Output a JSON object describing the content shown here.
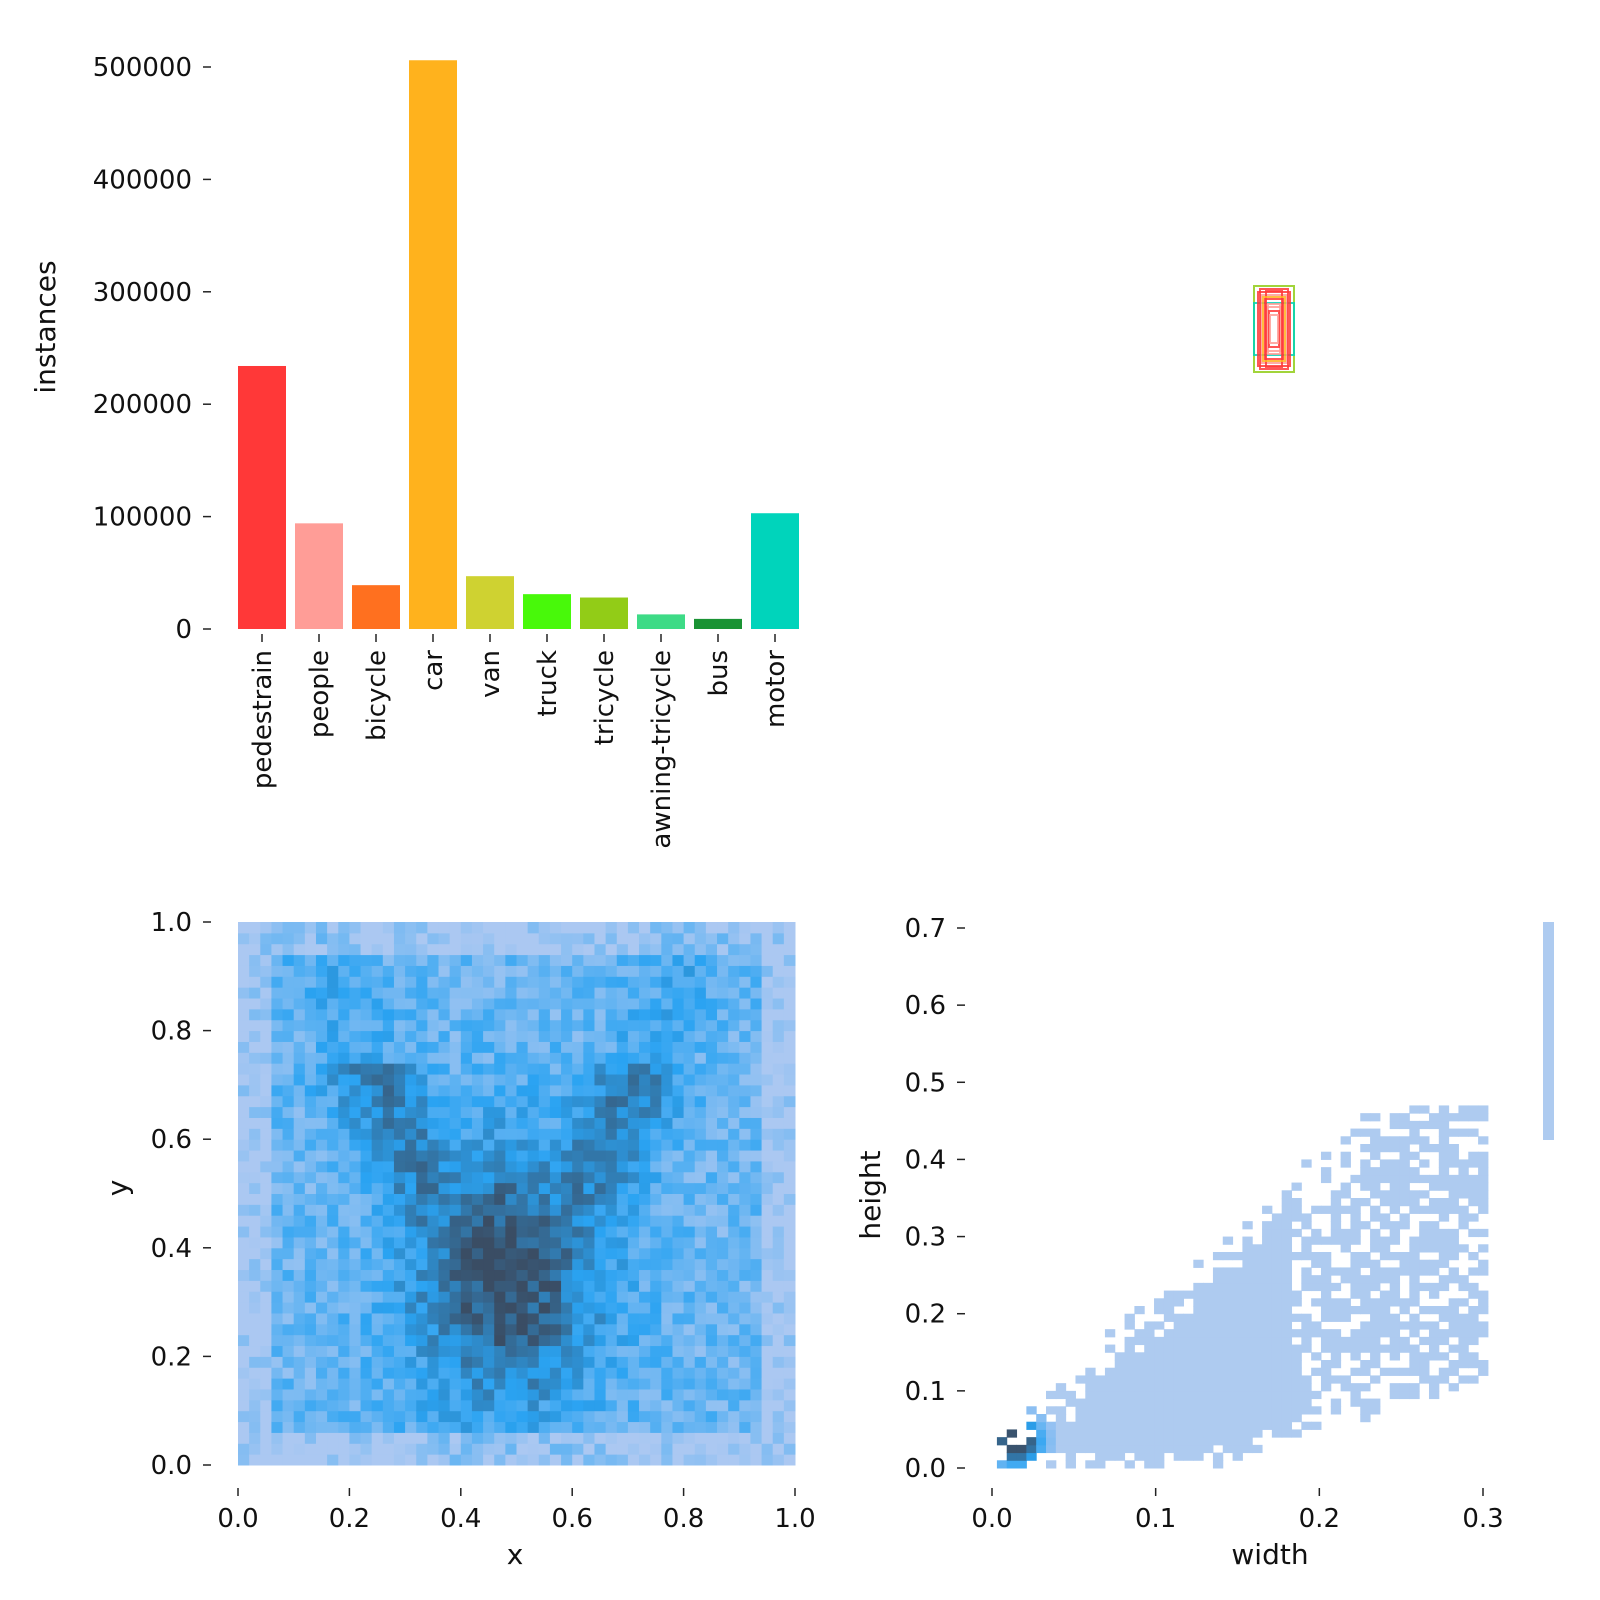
{
  "chart_data": [
    {
      "type": "bar",
      "categories": [
        "pedestrain",
        "people",
        "bicycle",
        "car",
        "van",
        "truck",
        "tricycle",
        "awning-tricycle",
        "bus",
        "motor"
      ],
      "values": [
        234000,
        94000,
        39000,
        506000,
        47000,
        31000,
        28000,
        13000,
        9000,
        103000
      ],
      "colors": [
        "#ff3838",
        "#ff9d97",
        "#ff701f",
        "#ffb21d",
        "#cfd231",
        "#48f90a",
        "#92cc17",
        "#3ddb86",
        "#1a9334",
        "#00d4bb"
      ],
      "ylabel": "instances",
      "yticks": [
        "0",
        "100000",
        "200000",
        "300000",
        "400000",
        "500000"
      ],
      "ylim": [
        0,
        510000
      ]
    },
    {
      "type": "other",
      "description_free": true,
      "box_colors": [
        "#ff3838",
        "#ff9d97",
        "#ffb21d",
        "#cfd231",
        "#92cc17",
        "#00d4bb"
      ]
    },
    {
      "type": "heatmap",
      "xlabel": "x",
      "ylabel": "y",
      "xticks": [
        "0.0",
        "0.2",
        "0.4",
        "0.6",
        "0.8",
        "1.0"
      ],
      "yticks": [
        "0.0",
        "0.2",
        "0.4",
        "0.6",
        "0.8",
        "1.0"
      ],
      "xlim": [
        0,
        1
      ],
      "ylim": [
        0,
        1
      ],
      "bins": 50,
      "peak": {
        "x": 0.48,
        "y": 0.35
      },
      "colors": {
        "low": "#abc8f2",
        "mid": "#2aa3f2",
        "high": "#3a4d64"
      }
    },
    {
      "type": "heatmap",
      "xlabel": "width",
      "ylabel": "height",
      "xticks": [
        "0.0",
        "0.1",
        "0.2",
        "0.3"
      ],
      "yticks": [
        "0.0",
        "0.1",
        "0.2",
        "0.3",
        "0.4",
        "0.5",
        "0.6",
        "0.7"
      ],
      "xlim": [
        0,
        0.34
      ],
      "ylim": [
        0,
        0.7
      ],
      "peak": {
        "x": 0.012,
        "y": 0.03
      },
      "colors": {
        "low": "#abc8f2",
        "mid": "#2aa3f2",
        "high": "#3a4d64"
      }
    }
  ]
}
